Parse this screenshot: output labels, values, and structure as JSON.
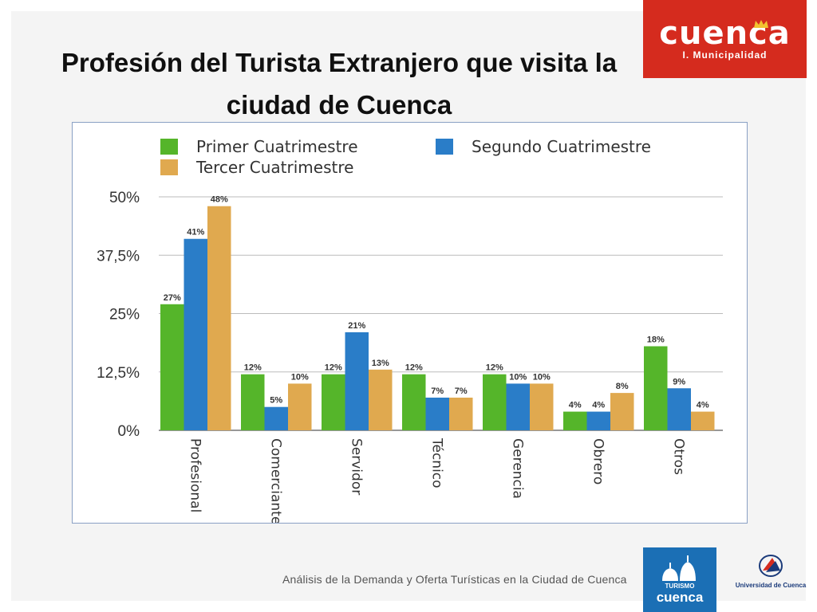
{
  "slide": {
    "title": "Profesión del Turista Extranjero que visita la ciudad de Cuenca",
    "footer": "Análisis de la Demanda y Oferta Turísticas en la Ciudad de Cuenca"
  },
  "logos": {
    "cuenca_word": "cuenca",
    "cuenca_sub": "I. Municipalidad",
    "turismo_label": "TURISMO",
    "turismo_city": "cuenca",
    "university": "Universidad de Cuenca"
  },
  "colors": {
    "primer": "#55b52a",
    "segundo": "#2a7dc8",
    "tercer": "#e0a94f",
    "brand_red": "#d52b1e",
    "brand_blue": "#1b6fb5"
  },
  "chart_data": {
    "type": "bar",
    "title": "",
    "xlabel": "",
    "ylabel": "",
    "categories": [
      "Profesional",
      "Comerciante",
      "Servidor",
      "Técnico",
      "Gerencia",
      "Obrero",
      "Otros"
    ],
    "series": [
      {
        "name": "Primer Cuatrimestre",
        "values": [
          27,
          12,
          12,
          12,
          12,
          4,
          18
        ],
        "labels": [
          "27%",
          "12%",
          "12%",
          "12%",
          "12%",
          "4%",
          "18%"
        ]
      },
      {
        "name": "Segundo Cuatrimestre",
        "values": [
          41,
          5,
          21,
          7,
          10,
          4,
          9
        ],
        "labels": [
          "41%",
          "5%",
          "21%",
          "7%",
          "10%",
          "4%",
          "9%"
        ]
      },
      {
        "name": "Tercer Cuatrimestre",
        "values": [
          48,
          10,
          13,
          7,
          10,
          8,
          4
        ],
        "labels": [
          "48%",
          "10%",
          "13%",
          "7%",
          "10%",
          "8%",
          "4%"
        ]
      }
    ],
    "ylim": [
      0,
      50
    ],
    "yticks": [
      0,
      12.5,
      25,
      37.5,
      50
    ],
    "ytick_labels": [
      "0%",
      "12,5%",
      "25%",
      "37,5%",
      "50%"
    ],
    "grid": true,
    "legend": "top"
  }
}
